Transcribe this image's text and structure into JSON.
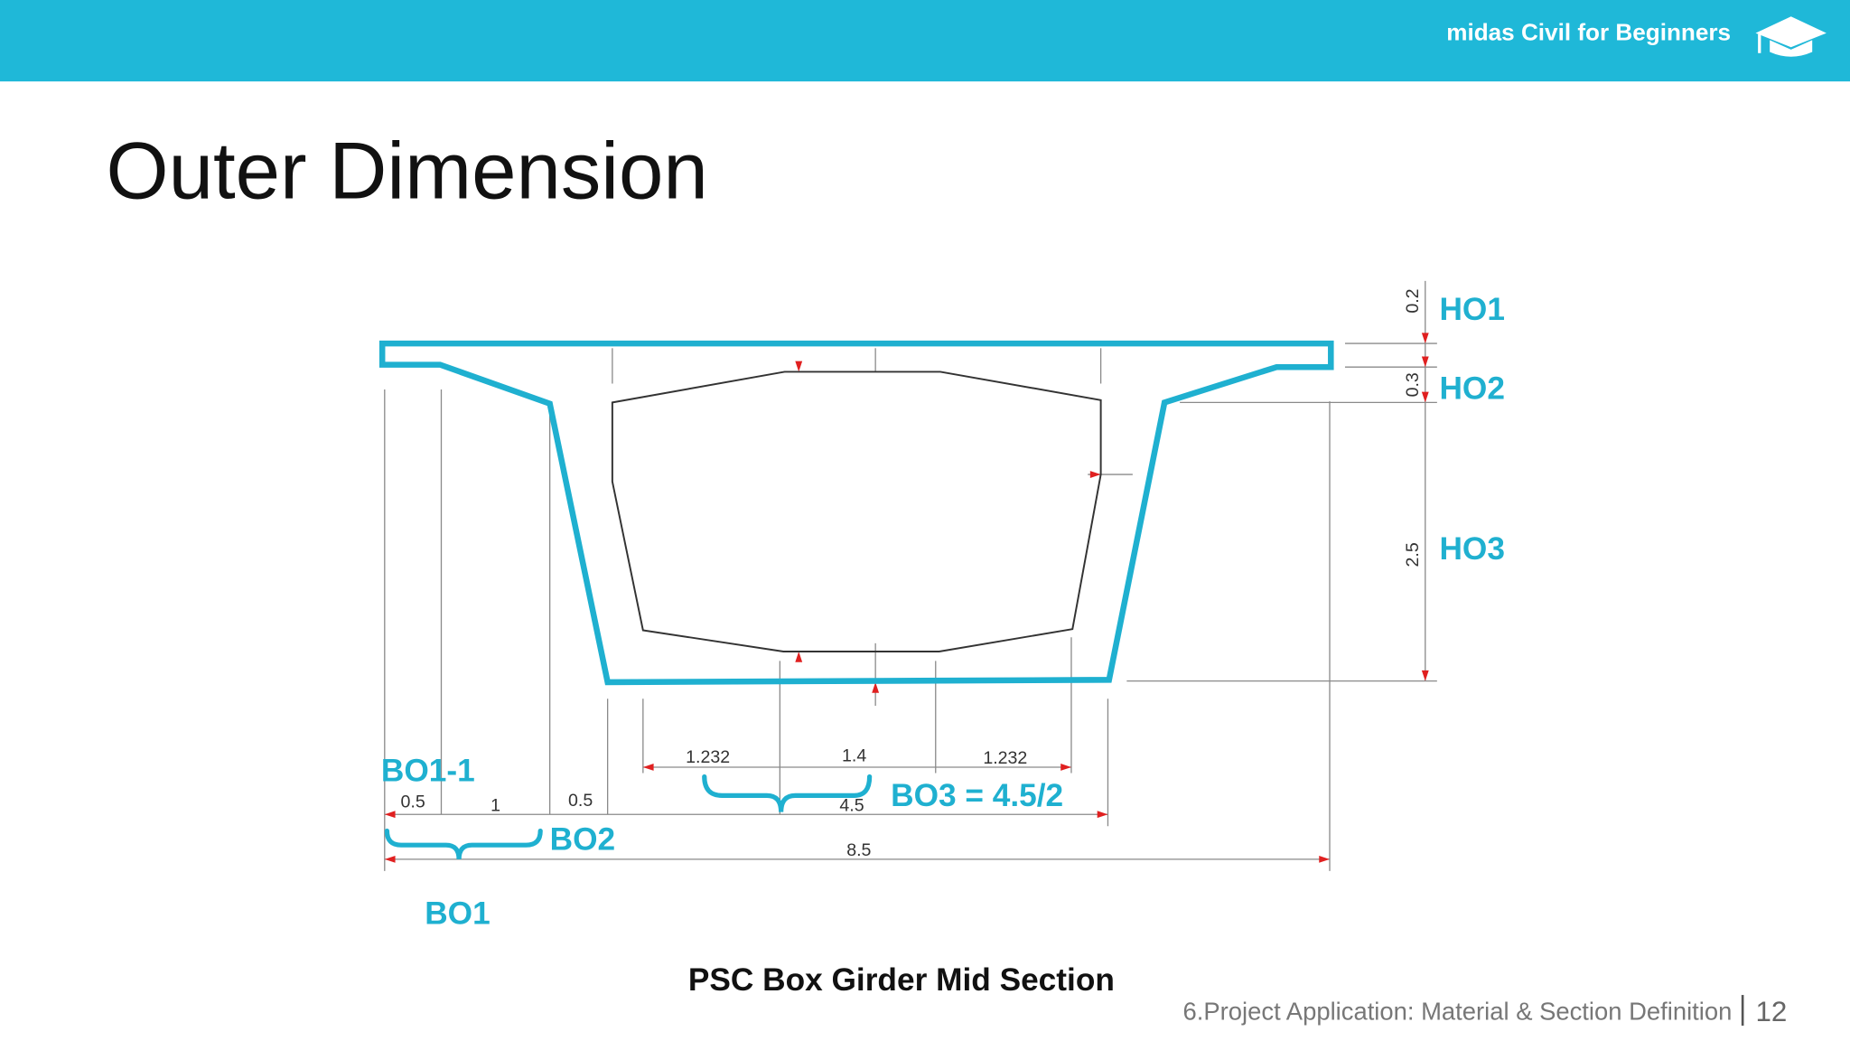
{
  "header": {
    "brand": "midas Civil for Beginners"
  },
  "title": "Outer Dimension",
  "diagram": {
    "vertical_dimensions": [
      "0.2",
      "0.3",
      "2.5"
    ],
    "height_labels": [
      "HO1",
      "HO2",
      "HO3"
    ],
    "inner_dimensions": [
      "1.232",
      "1.4",
      "1.232"
    ],
    "bottom_width": "4.5",
    "flange_dimensions": [
      "0.5",
      "1",
      "0.5"
    ],
    "total_width": "8.5",
    "width_labels": {
      "bo1_1": "BO1-1",
      "bo2": "BO2",
      "bo3": "BO3 = 4.5/2",
      "bo1": "BO1"
    }
  },
  "caption": "PSC Box Girder Mid Section",
  "footer": {
    "section": "6.Project Application: Material & Section Definition",
    "page": "12"
  }
}
